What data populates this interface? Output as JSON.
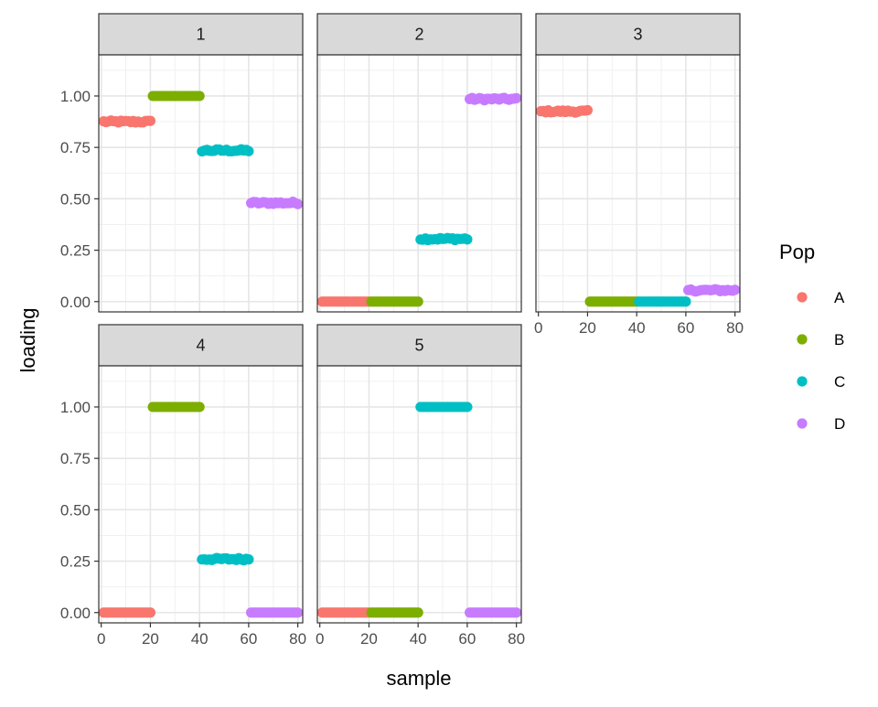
{
  "chart_data": {
    "type": "scatter",
    "layout": "facet_wrap",
    "xlabel": "sample",
    "ylabel": "loading",
    "xlim": [
      -1,
      82
    ],
    "ylim": [
      -0.05,
      1.2
    ],
    "x_ticks": [
      0,
      20,
      40,
      60,
      80
    ],
    "y_ticks": [
      0.0,
      0.25,
      0.5,
      0.75,
      1.0
    ],
    "y_tick_labels": [
      "0.00",
      "0.25",
      "0.50",
      "0.75",
      "1.00"
    ],
    "grid": true,
    "legend": {
      "title": "Pop",
      "position": "right",
      "entries": [
        {
          "label": "A",
          "color": "#F8766D"
        },
        {
          "label": "B",
          "color": "#7CAE00"
        },
        {
          "label": "C",
          "color": "#00BFC4"
        },
        {
          "label": "D",
          "color": "#C77CFF"
        }
      ]
    },
    "series_x_ranges": {
      "A": [
        1,
        20
      ],
      "B": [
        21,
        40
      ],
      "C": [
        41,
        60
      ],
      "D": [
        61,
        80
      ]
    },
    "panels": [
      {
        "label": "1",
        "values": {
          "A": 0.875,
          "B": 1.0,
          "C": 0.735,
          "D": 0.48
        }
      },
      {
        "label": "2",
        "values": {
          "A": 0.0,
          "B": 0.0,
          "C": 0.305,
          "D": 0.985
        }
      },
      {
        "label": "3",
        "values": {
          "A": 0.925,
          "B": 0.0,
          "C": 0.0,
          "D": 0.055
        }
      },
      {
        "label": "4",
        "values": {
          "A": 0.0,
          "B": 1.0,
          "C": 0.26,
          "D": 0.0
        }
      },
      {
        "label": "5",
        "values": {
          "A": 0.0,
          "B": 0.0,
          "C": 1.0,
          "D": 0.0
        }
      }
    ]
  }
}
